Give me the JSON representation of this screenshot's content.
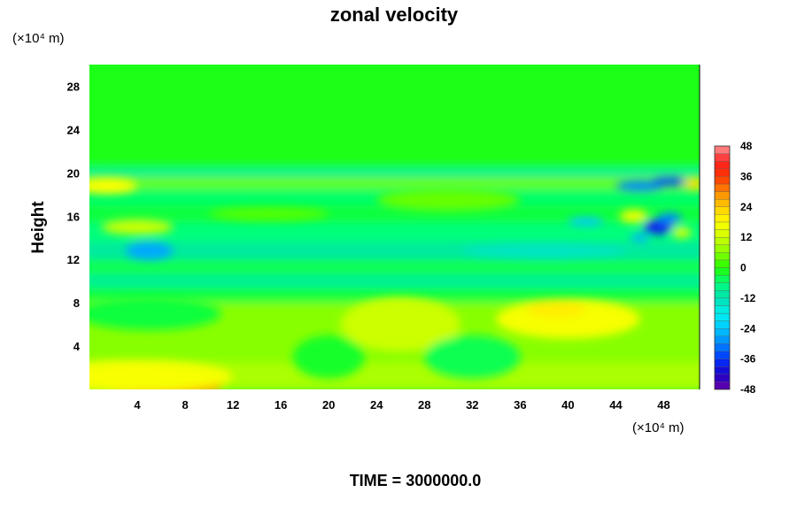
{
  "chart_data": {
    "type": "heatmap",
    "title": "zonal velocity",
    "xlabel": "",
    "ylabel": "Height",
    "x_unit": "(×10⁴ m)",
    "y_unit": "(×10⁴ m)",
    "footer": "TIME = 3000000.0",
    "xlim": [
      0,
      51
    ],
    "ylim": [
      0,
      30
    ],
    "xticks": [
      4,
      8,
      12,
      16,
      20,
      24,
      28,
      32,
      36,
      40,
      44,
      48
    ],
    "yticks": [
      4,
      8,
      12,
      16,
      20,
      24,
      28
    ],
    "colorbar": {
      "range": [
        -48,
        48
      ],
      "step": 3,
      "ticks": [
        48,
        36,
        24,
        12,
        0,
        -12,
        -24,
        -36,
        -48
      ],
      "stops": [
        [
          -48,
          "#6a00a8"
        ],
        [
          -42,
          "#1a00c8"
        ],
        [
          -36,
          "#0033ff"
        ],
        [
          -30,
          "#0088ff"
        ],
        [
          -24,
          "#00c8ff"
        ],
        [
          -18,
          "#00f0f0"
        ],
        [
          -12,
          "#00e0b0"
        ],
        [
          -6,
          "#00ff7a"
        ],
        [
          0,
          "#22ff00"
        ],
        [
          6,
          "#88ff00"
        ],
        [
          12,
          "#ccff00"
        ],
        [
          18,
          "#ffff00"
        ],
        [
          24,
          "#ffcc00"
        ],
        [
          30,
          "#ff8800"
        ],
        [
          36,
          "#ff3300"
        ],
        [
          42,
          "#ff2222"
        ],
        [
          48,
          "#ff9999"
        ]
      ]
    },
    "bands": [
      {
        "y": [
          0.0,
          2.5
        ],
        "value": 9
      },
      {
        "y": [
          2.5,
          8.0
        ],
        "value": 6
      },
      {
        "y": [
          8.0,
          9.4
        ],
        "value": -3
      },
      {
        "y": [
          9.4,
          10.6
        ],
        "value": -9
      },
      {
        "y": [
          10.6,
          12.0
        ],
        "value": -4
      },
      {
        "y": [
          12.0,
          13.6
        ],
        "value": -10
      },
      {
        "y": [
          13.6,
          15.4
        ],
        "value": -6
      },
      {
        "y": [
          15.4,
          17.0
        ],
        "value": -3
      },
      {
        "y": [
          17.0,
          18.6
        ],
        "value": -5
      },
      {
        "y": [
          18.6,
          19.6
        ],
        "value": 4
      },
      {
        "y": [
          19.6,
          20.4
        ],
        "value": -9
      },
      {
        "y": [
          20.4,
          21.0
        ],
        "value": -2
      },
      {
        "y": [
          21.0,
          30.0
        ],
        "value": -1
      }
    ],
    "features": [
      {
        "x": 6,
        "y": 0.2,
        "rx": 5,
        "ry": 0.9,
        "value": 30
      },
      {
        "x": 4,
        "y": 1.2,
        "rx": 8,
        "ry": 1.5,
        "value": 17
      },
      {
        "x": 40,
        "y": 6.5,
        "rx": 6,
        "ry": 1.8,
        "value": 17
      },
      {
        "x": 39,
        "y": 7.4,
        "rx": 2.5,
        "ry": 0.8,
        "value": 20
      },
      {
        "x": 26,
        "y": 6,
        "rx": 5,
        "ry": 2.5,
        "value": 12
      },
      {
        "x": 20,
        "y": 3,
        "rx": 3,
        "ry": 2,
        "value": -2
      },
      {
        "x": 32,
        "y": 3,
        "rx": 4,
        "ry": 2,
        "value": -4
      },
      {
        "x": 5,
        "y": 7,
        "rx": 6,
        "ry": 1.5,
        "value": -3
      },
      {
        "x": 1.5,
        "y": 18.8,
        "rx": 2.5,
        "ry": 0.7,
        "value": 18
      },
      {
        "x": 5,
        "y": 12.8,
        "rx": 2,
        "ry": 0.8,
        "value": -27
      },
      {
        "x": 4,
        "y": 15,
        "rx": 3,
        "ry": 0.7,
        "value": 12
      },
      {
        "x": 47.5,
        "y": 15,
        "rx": 1.2,
        "ry": 0.7,
        "value": -38
      },
      {
        "x": 48.5,
        "y": 15.8,
        "rx": 1.0,
        "ry": 0.5,
        "value": -30
      },
      {
        "x": 46,
        "y": 18.8,
        "rx": 2,
        "ry": 0.5,
        "value": -30
      },
      {
        "x": 48.5,
        "y": 19.2,
        "rx": 1.5,
        "ry": 0.4,
        "value": -34
      },
      {
        "x": 41.5,
        "y": 15.5,
        "rx": 1.5,
        "ry": 0.4,
        "value": -24
      },
      {
        "x": 45.5,
        "y": 16,
        "rx": 1.2,
        "ry": 0.6,
        "value": 16
      },
      {
        "x": 46,
        "y": 14,
        "rx": 0.8,
        "ry": 0.4,
        "value": -26
      },
      {
        "x": 50.5,
        "y": 19,
        "rx": 0.8,
        "ry": 0.5,
        "value": 22
      },
      {
        "x": 49.5,
        "y": 14.5,
        "rx": 0.8,
        "ry": 0.5,
        "value": 14
      },
      {
        "x": 30,
        "y": 17.5,
        "rx": 6,
        "ry": 1,
        "value": 4
      },
      {
        "x": 38,
        "y": 12.8,
        "rx": 7,
        "ry": 0.6,
        "value": -14
      },
      {
        "x": 15,
        "y": 16.2,
        "rx": 5,
        "ry": 0.6,
        "value": 3
      }
    ]
  }
}
